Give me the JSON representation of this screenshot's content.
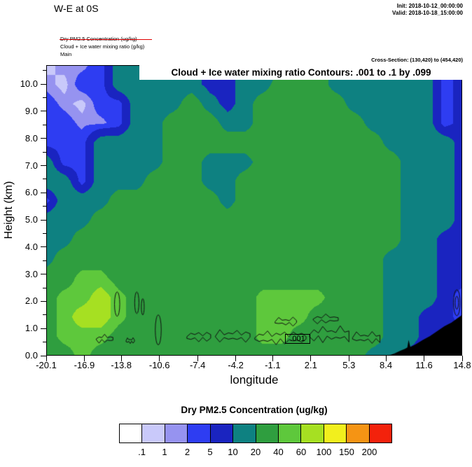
{
  "header": {
    "title": "W-E at 0S",
    "init": "Init: 2018-10-12_00:00:00",
    "valid": "Valid: 2018-10-18_15:00:00"
  },
  "legend_block": {
    "line1": "Dry PM2.5 Concentration   (ug/kg)",
    "line2": "Cloud + Ice water mixing ratio   (g/kg)",
    "line3": "Main",
    "line1_strike_color": "#e00000"
  },
  "cross_section": "Cross-Section: (130,420) to (454,420)",
  "chart_data": {
    "type": "heatmap",
    "title": "Cloud + Ice water mixing ratio Contours: .001 to .1 by .099",
    "xlabel": "longitude",
    "ylabel": "Height (km)",
    "xlim": [
      -20.1,
      14.8
    ],
    "ylim": [
      0,
      10.7
    ],
    "xticks": [
      -20.1,
      -16.9,
      -13.8,
      -10.6,
      -7.4,
      -4.2,
      -1.1,
      2.1,
      5.3,
      8.4,
      11.6,
      14.8
    ],
    "xtick_labels": [
      "-20.1",
      "-16.9",
      "-13.8",
      "-10.6",
      "-7.4",
      "-4.2",
      "-1.1",
      "2.1",
      "5.3",
      "8.4",
      "11.6",
      "14.8"
    ],
    "yticks": [
      0,
      1,
      2,
      3,
      4,
      5,
      6,
      7,
      8,
      9,
      10
    ],
    "ytick_labels": [
      "0.0",
      "1.0",
      "2.0",
      "3.0",
      "4.0",
      "5.0",
      "6.0",
      "7.0",
      "8.0",
      "9.0",
      "10.0"
    ],
    "levels": [
      0.1,
      1,
      2,
      5,
      10,
      20,
      40,
      60,
      100,
      150,
      200
    ],
    "colors": [
      "#ffffff",
      "#c9c9fa",
      "#9693f0",
      "#2e3df2",
      "#1a24c0",
      "#0e8181",
      "#2f9e3f",
      "#5ec83c",
      "#a6e022",
      "#f2ef1d",
      "#f59414",
      "#f3220c"
    ],
    "grid": {
      "x": [
        -20.1,
        -18.6,
        -17.1,
        -15.5,
        -14.0,
        -12.5,
        -11.0,
        -9.5,
        -7.9,
        -6.4,
        -4.9,
        -3.4,
        -1.9,
        -0.4,
        1.2,
        2.7,
        4.2,
        5.7,
        7.3,
        8.8,
        10.3,
        11.8,
        13.3,
        14.8
      ],
      "y": [
        10.7,
        9.99,
        9.27,
        8.56,
        7.85,
        7.13,
        6.42,
        5.71,
        4.99,
        4.28,
        3.57,
        2.85,
        2.14,
        1.43,
        0.71,
        0.0
      ],
      "values": [
        [
          0.5,
          1.5,
          1.5,
          3,
          14,
          14,
          14,
          14,
          14,
          7,
          7,
          14,
          14,
          14,
          28,
          28,
          14,
          14,
          14,
          14,
          14,
          14,
          3,
          7
        ],
        [
          1.5,
          0.5,
          3,
          3,
          14,
          14,
          14,
          14,
          14,
          7,
          7,
          14,
          14,
          28,
          28,
          28,
          14,
          14,
          14,
          14,
          14,
          14,
          3,
          7
        ],
        [
          3,
          1.5,
          0.5,
          3,
          3,
          14,
          14,
          14,
          28,
          14,
          7,
          14,
          28,
          28,
          28,
          28,
          28,
          14,
          14,
          14,
          14,
          14,
          3,
          7
        ],
        [
          3,
          3,
          1.5,
          1.5,
          3,
          14,
          14,
          28,
          28,
          28,
          14,
          14,
          28,
          28,
          28,
          28,
          28,
          28,
          14,
          14,
          14,
          14,
          3,
          7
        ],
        [
          3,
          3,
          3,
          14,
          14,
          14,
          14,
          28,
          28,
          28,
          28,
          28,
          28,
          28,
          28,
          28,
          28,
          28,
          28,
          14,
          14,
          14,
          14,
          7
        ],
        [
          14,
          3,
          3,
          14,
          14,
          14,
          14,
          28,
          28,
          14,
          14,
          14,
          28,
          28,
          28,
          28,
          28,
          28,
          28,
          28,
          14,
          14,
          14,
          7
        ],
        [
          14,
          14,
          3,
          14,
          14,
          14,
          28,
          28,
          28,
          14,
          14,
          28,
          28,
          28,
          28,
          28,
          28,
          28,
          28,
          28,
          14,
          14,
          14,
          7
        ],
        [
          3,
          14,
          14,
          14,
          28,
          28,
          28,
          28,
          28,
          28,
          14,
          28,
          28,
          28,
          28,
          28,
          28,
          28,
          28,
          28,
          14,
          14,
          14,
          7
        ],
        [
          14,
          14,
          14,
          28,
          28,
          28,
          28,
          28,
          28,
          28,
          28,
          28,
          28,
          28,
          28,
          28,
          28,
          28,
          28,
          28,
          14,
          14,
          14,
          7
        ],
        [
          14,
          14,
          28,
          28,
          28,
          28,
          28,
          28,
          28,
          28,
          28,
          28,
          28,
          28,
          28,
          28,
          28,
          28,
          28,
          28,
          14,
          14,
          7,
          7
        ],
        [
          14,
          28,
          28,
          28,
          28,
          28,
          28,
          28,
          28,
          28,
          28,
          28,
          28,
          28,
          28,
          28,
          28,
          28,
          28,
          14,
          14,
          14,
          7,
          7
        ],
        [
          28,
          28,
          48,
          48,
          28,
          28,
          28,
          28,
          28,
          28,
          28,
          28,
          28,
          28,
          28,
          28,
          28,
          28,
          28,
          14,
          14,
          14,
          7,
          7
        ],
        [
          28,
          48,
          48,
          75,
          48,
          28,
          28,
          28,
          28,
          28,
          28,
          28,
          48,
          48,
          48,
          48,
          28,
          28,
          28,
          14,
          14,
          14,
          7,
          3
        ],
        [
          28,
          48,
          75,
          75,
          48,
          28,
          28,
          28,
          28,
          28,
          28,
          28,
          48,
          48,
          48,
          28,
          28,
          28,
          28,
          14,
          14,
          7,
          7,
          3
        ],
        [
          28,
          48,
          48,
          48,
          28,
          28,
          28,
          28,
          28,
          28,
          28,
          28,
          48,
          48,
          28,
          28,
          28,
          28,
          28,
          14,
          14,
          7,
          7,
          7
        ],
        [
          28,
          28,
          48,
          28,
          28,
          28,
          28,
          28,
          28,
          28,
          28,
          28,
          28,
          28,
          28,
          28,
          28,
          28,
          14,
          14,
          7,
          7,
          7,
          7
        ]
      ]
    },
    "terrain": [
      [
        8.6,
        0
      ],
      [
        9.1,
        0.08
      ],
      [
        9.6,
        0.18
      ],
      [
        10.0,
        0.25
      ],
      [
        10.2,
        0.3
      ],
      [
        10.3,
        0.58
      ],
      [
        10.45,
        0.32
      ],
      [
        10.9,
        0.42
      ],
      [
        11.5,
        0.58
      ],
      [
        12.1,
        0.72
      ],
      [
        12.7,
        0.9
      ],
      [
        13.3,
        1.08
      ],
      [
        13.9,
        1.22
      ],
      [
        14.4,
        1.38
      ],
      [
        14.8,
        1.5
      ]
    ],
    "cloud_contours": {
      "label": ".001",
      "label_x": 0.1,
      "label_y": 0.62,
      "blobs": [
        {
          "x0": -15.9,
          "x1": -14.5,
          "y": 0.62,
          "amp": 0.18
        },
        {
          "x0": -13.4,
          "x1": -12.7,
          "y": 0.55,
          "amp": 0.12
        },
        {
          "x0": -8.3,
          "x1": -6.3,
          "y": 0.7,
          "amp": 0.22
        },
        {
          "x0": -5.9,
          "x1": -3.0,
          "y": 0.72,
          "amp": 0.26
        },
        {
          "x0": -2.6,
          "x1": 1.7,
          "y": 0.66,
          "amp": 0.3
        },
        {
          "x0": 2.0,
          "x1": 5.3,
          "y": 0.78,
          "amp": 0.34
        },
        {
          "x0": 5.6,
          "x1": 7.9,
          "y": 0.66,
          "amp": 0.24
        },
        {
          "x0": -0.9,
          "x1": 0.9,
          "y": 1.25,
          "amp": 0.18
        },
        {
          "x0": 2.3,
          "x1": 4.4,
          "y": 1.35,
          "amp": 0.2
        }
      ],
      "ellipses": [
        {
          "cx": -14.15,
          "cy": 1.9,
          "rx": 0.22,
          "ry": 0.45
        },
        {
          "cx": -12.5,
          "cy": 1.95,
          "rx": 0.18,
          "ry": 0.4
        },
        {
          "cx": -12.0,
          "cy": 1.8,
          "rx": 0.12,
          "ry": 0.3
        },
        {
          "cx": -10.7,
          "cy": 0.95,
          "rx": 0.25,
          "ry": 0.55
        },
        {
          "cx": 14.35,
          "cy": 1.95,
          "rx": 0.28,
          "ry": 0.48
        },
        {
          "cx": 14.35,
          "cy": 1.95,
          "rx": 0.14,
          "ry": 0.24
        }
      ]
    }
  },
  "colorbar": {
    "title": "Dry PM2.5 Concentration  (ug/kg)",
    "labels": [
      ".1",
      "1",
      "2",
      "5",
      "10",
      "20",
      "40",
      "60",
      "100",
      "150",
      "200"
    ]
  }
}
